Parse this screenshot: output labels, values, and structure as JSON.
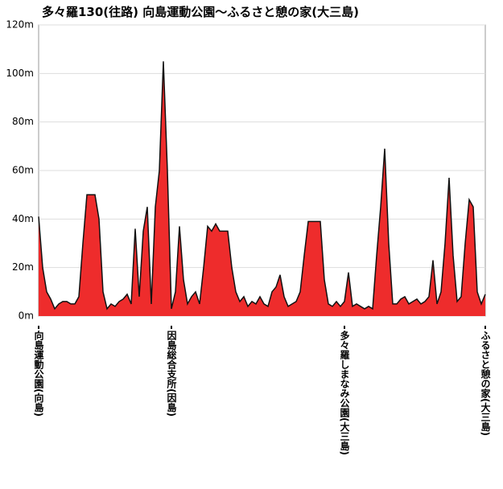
{
  "chart_data": {
    "type": "area",
    "title": "多々羅130(往路) 向島運動公園～ふるさと憩の家(大三島)",
    "categories": [
      "向島運動公園(向島)",
      null,
      null,
      null,
      null,
      null,
      null,
      null,
      null,
      null,
      null,
      null,
      null,
      null,
      null,
      null,
      null,
      null,
      null,
      null,
      null,
      null,
      null,
      null,
      null,
      null,
      null,
      null,
      null,
      null,
      null,
      null,
      null,
      "因島総合支所(因島)",
      null,
      null,
      null,
      null,
      null,
      null,
      null,
      null,
      null,
      null,
      null,
      null,
      null,
      null,
      null,
      null,
      null,
      null,
      null,
      null,
      null,
      null,
      null,
      null,
      null,
      null,
      null,
      null,
      null,
      null,
      null,
      null,
      null,
      null,
      null,
      null,
      null,
      null,
      null,
      null,
      null,
      null,
      "多々羅しまなみ公園(大三島)",
      null,
      null,
      null,
      null,
      null,
      null,
      null,
      null,
      null,
      null,
      null,
      null,
      null,
      null,
      null,
      null,
      null,
      null,
      null,
      null,
      null,
      null,
      null,
      null,
      null,
      null,
      null,
      null,
      null,
      null,
      null,
      null,
      null,
      null,
      "ふるさと憩の家(大三島)"
    ],
    "values": [
      41,
      20,
      10,
      7,
      3,
      5,
      6,
      6,
      5,
      5,
      8,
      30,
      50,
      50,
      50,
      40,
      10,
      3,
      5,
      4,
      6,
      7,
      9,
      5,
      36,
      8,
      35,
      45,
      5,
      45,
      60,
      105,
      60,
      3,
      10,
      37,
      15,
      5,
      8,
      10,
      5,
      20,
      37,
      35,
      38,
      35,
      35,
      35,
      20,
      10,
      6,
      8,
      4,
      6,
      5,
      8,
      5,
      4,
      10,
      12,
      17,
      8,
      4,
      5,
      6,
      10,
      25,
      39,
      39,
      39,
      39,
      15,
      5,
      4,
      6,
      4,
      6,
      18,
      4,
      5,
      4,
      3,
      4,
      3,
      25,
      45,
      69,
      30,
      5,
      5,
      7,
      8,
      5,
      6,
      7,
      5,
      6,
      8,
      23,
      5,
      10,
      30,
      57,
      25,
      6,
      8,
      30,
      48,
      45,
      10,
      5,
      9
    ],
    "color": "#ee2c2c",
    "ylim": [
      0,
      120
    ],
    "yticks": [
      {
        "value": 0,
        "label": "0m"
      },
      {
        "value": 20,
        "label": "20m"
      },
      {
        "value": 40,
        "label": "40m"
      },
      {
        "value": 60,
        "label": "60m"
      },
      {
        "value": 80,
        "label": "80m"
      },
      {
        "value": 100,
        "label": "100m"
      },
      {
        "value": 120,
        "label": "120m"
      }
    ],
    "grid": true
  }
}
